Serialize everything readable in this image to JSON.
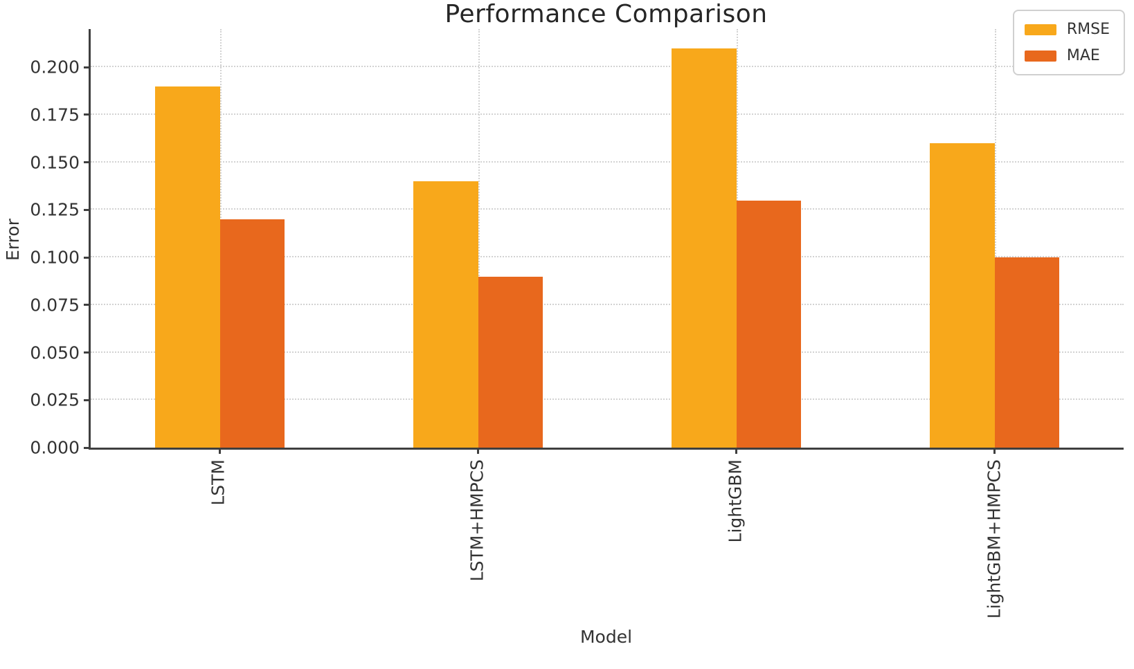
{
  "chart_data": {
    "type": "bar",
    "title": "Performance Comparison",
    "xlabel": "Model",
    "ylabel": "Error",
    "categories": [
      "LSTM",
      "LSTM+HMPCS",
      "LightGBM",
      "LightGBM+HMPCS"
    ],
    "series": [
      {
        "name": "RMSE",
        "color": "#F8A81B",
        "values": [
          0.19,
          0.14,
          0.21,
          0.16
        ]
      },
      {
        "name": "MAE",
        "color": "#E8681D",
        "values": [
          0.12,
          0.09,
          0.13,
          0.1
        ]
      }
    ],
    "ylim": [
      0,
      0.22
    ],
    "yticks": [
      0.0,
      0.025,
      0.05,
      0.075,
      0.1,
      0.125,
      0.15,
      0.175,
      0.2
    ],
    "ytick_labels": [
      "0.000",
      "0.025",
      "0.050",
      "0.075",
      "0.100",
      "0.125",
      "0.150",
      "0.175",
      "0.200"
    ],
    "grid": true,
    "legend_position": "upper right",
    "colors": {
      "spine": "#3f3f3f",
      "gridline": "#d2d2d2",
      "text": "#333333",
      "title_text": "#262626",
      "background": "#ffffff"
    }
  }
}
